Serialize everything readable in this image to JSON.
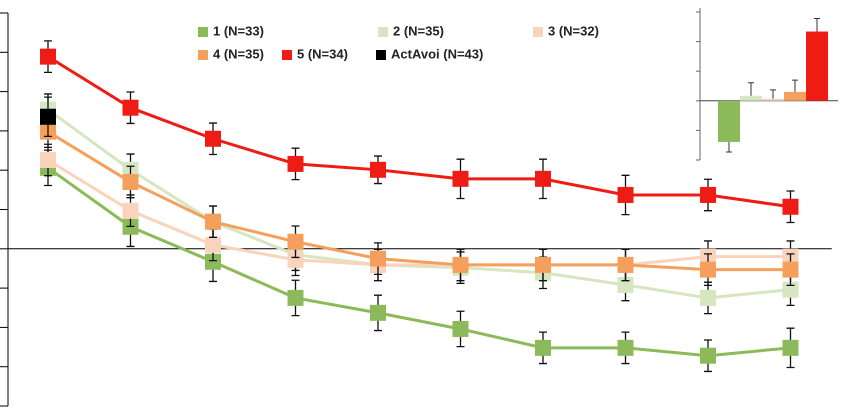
{
  "chart_data": [
    {
      "type": "line",
      "x": [
        1,
        2,
        3,
        4,
        5,
        6,
        7,
        8,
        9,
        10
      ],
      "xlim": [
        0.5,
        10.5
      ],
      "ylim": [
        -4,
        6
      ],
      "yticks": [
        -4,
        -3,
        -2,
        -1,
        0,
        1,
        2,
        3,
        4,
        5,
        6
      ],
      "series": [
        {
          "name": "1 (N=33)",
          "color": "#8cba5a",
          "values": [
            2.06,
            0.56,
            -0.33,
            -1.25,
            -1.63,
            -2.04,
            -2.52,
            -2.52,
            -2.72,
            -2.52
          ],
          "errors": [
            0.45,
            0.5,
            0.5,
            0.45,
            0.45,
            0.45,
            0.4,
            0.4,
            0.4,
            0.5
          ]
        },
        {
          "name": "2 (N=35)",
          "color": "#d6e6c0",
          "values": [
            3.54,
            2.01,
            0.69,
            -0.15,
            -0.41,
            -0.48,
            -0.61,
            -0.92,
            -1.25,
            -1.04
          ],
          "errors": [
            0.4,
            0.4,
            0.4,
            0.4,
            0.4,
            0.4,
            0.4,
            0.4,
            0.4,
            0.4
          ]
        },
        {
          "name": "3 (N=32)",
          "color": "#f9d3bb",
          "values": [
            2.26,
            0.97,
            0.1,
            -0.28,
            -0.41,
            -0.41,
            -0.41,
            -0.41,
            -0.2,
            -0.2
          ],
          "errors": [
            0.4,
            0.4,
            0.4,
            0.4,
            0.4,
            0.4,
            0.4,
            0.4,
            0.4,
            0.4
          ]
        },
        {
          "name": "4 (N=35)",
          "color": "#f4a05c",
          "values": [
            2.98,
            1.7,
            0.69,
            0.18,
            -0.25,
            -0.41,
            -0.41,
            -0.41,
            -0.53,
            -0.53
          ],
          "errors": [
            0.4,
            0.4,
            0.4,
            0.4,
            0.4,
            0.4,
            0.4,
            0.4,
            0.4,
            0.4
          ]
        },
        {
          "name": "5 (N=34)",
          "color": "#ee1c14",
          "values": [
            4.89,
            3.59,
            2.8,
            2.16,
            2.01,
            1.78,
            1.78,
            1.37,
            1.37,
            1.07
          ],
          "errors": [
            0.4,
            0.4,
            0.4,
            0.4,
            0.35,
            0.5,
            0.5,
            0.5,
            0.4,
            0.4
          ]
        },
        {
          "name": "ActAvoi (N=43)",
          "color": "#000000",
          "values": [
            3.36,
            null,
            null,
            null,
            null,
            null,
            null,
            null,
            null,
            null
          ],
          "errors": [
            0.5,
            null,
            null,
            null,
            null,
            null,
            null,
            null,
            null,
            null
          ]
        }
      ]
    },
    {
      "type": "bar",
      "values": [
        -1.39,
        0.17,
        0.07,
        0.3,
        2.34
      ],
      "errors": [
        0.34,
        0.44,
        0.3,
        0.4,
        0.44
      ],
      "colors": [
        "#8cba5a",
        "#d6e6c0",
        "#f9d3bb",
        "#f4a05c",
        "#ee1c14"
      ],
      "ylim": [
        -2,
        3
      ],
      "yticks": [
        -2,
        -1,
        0,
        1,
        2,
        3
      ]
    }
  ]
}
